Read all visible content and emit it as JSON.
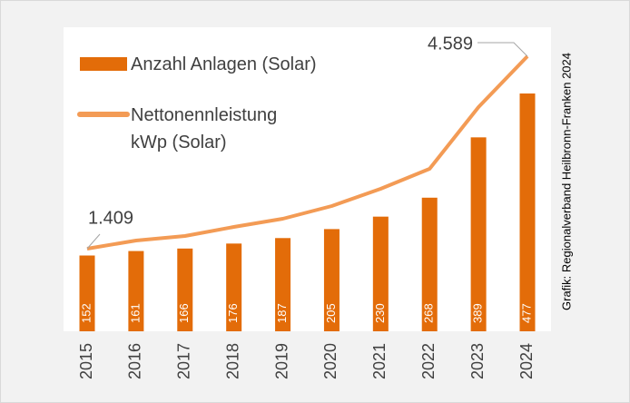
{
  "chart_data": {
    "type": "bar-line",
    "categories": [
      "2015",
      "2016",
      "2017",
      "2018",
      "2019",
      "2020",
      "2021",
      "2022",
      "2023",
      "2024"
    ],
    "series": [
      {
        "name": "Anzahl Anlagen (Solar)",
        "type": "bar",
        "color": "#e36c09",
        "values": [
          152,
          161,
          166,
          176,
          187,
          205,
          230,
          268,
          389,
          477
        ]
      },
      {
        "name": "Nettonennleistung kWp (Solar)",
        "type": "line",
        "color": "#f39b55",
        "values": [
          1409,
          1544,
          1619,
          1769,
          1904,
          2114,
          2399,
          2729,
          3749,
          4589
        ],
        "value_labels": [
          "1.409",
          null,
          null,
          null,
          null,
          null,
          null,
          null,
          null,
          "4.589"
        ]
      }
    ],
    "source": "Grafik: Regionalverband Heilbronn-Franken 2024"
  }
}
